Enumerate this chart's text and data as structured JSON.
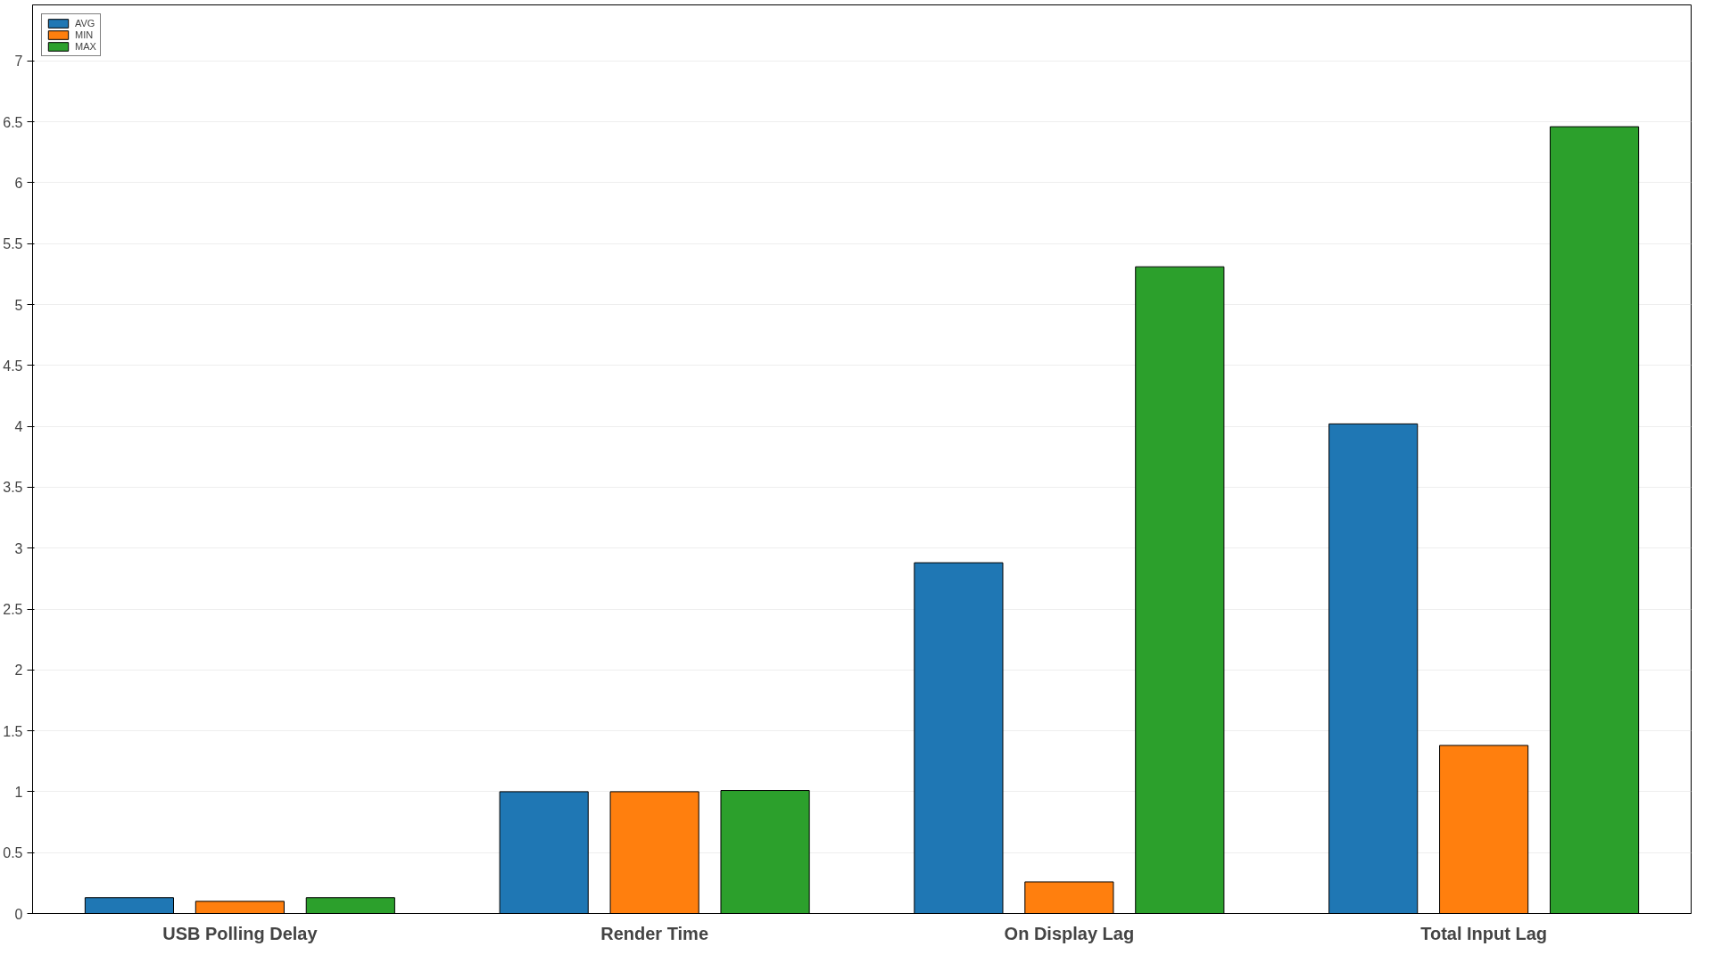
{
  "chart_data": {
    "type": "bar",
    "categories": [
      "USB Polling Delay",
      "Render Time",
      "On Display Lag",
      "Total Input Lag"
    ],
    "series": [
      {
        "name": "AVG",
        "color": "#1f77b4",
        "values": [
          0.13,
          1.0,
          2.88,
          4.02
        ]
      },
      {
        "name": "MIN",
        "color": "#ff7f0e",
        "values": [
          0.1,
          1.0,
          0.26,
          1.38
        ]
      },
      {
        "name": "MAX",
        "color": "#2ca02c",
        "values": [
          0.13,
          1.01,
          5.31,
          6.46
        ]
      }
    ],
    "ylim": [
      0,
      7.46
    ],
    "yticks": [
      0,
      0.5,
      1,
      1.5,
      2,
      2.5,
      3,
      3.5,
      4,
      4.5,
      5,
      5.5,
      6,
      6.5,
      7
    ],
    "grid": "y",
    "legend": "top left"
  }
}
